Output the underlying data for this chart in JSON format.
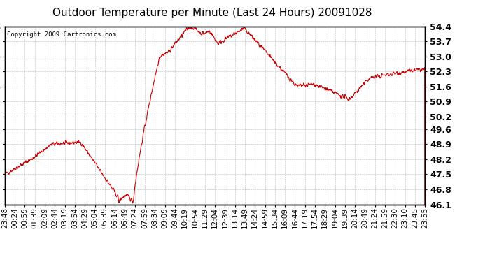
{
  "title": "Outdoor Temperature per Minute (Last 24 Hours) 20091028",
  "copyright": "Copyright 2009 Cartronics.com",
  "line_color": "#cc0000",
  "background_color": "#ffffff",
  "plot_background": "#ffffff",
  "grid_color": "#aaaaaa",
  "ylim": [
    46.1,
    54.4
  ],
  "yticks": [
    46.1,
    46.8,
    47.5,
    48.2,
    48.9,
    49.6,
    50.2,
    50.9,
    51.6,
    52.3,
    53.0,
    53.7,
    54.4
  ],
  "xtick_labels": [
    "23:48",
    "00:24",
    "00:59",
    "01:39",
    "02:09",
    "02:44",
    "03:19",
    "03:54",
    "04:29",
    "05:04",
    "05:39",
    "06:14",
    "06:49",
    "07:24",
    "07:59",
    "08:34",
    "09:09",
    "09:44",
    "10:19",
    "10:54",
    "11:29",
    "12:04",
    "12:39",
    "13:14",
    "13:49",
    "14:24",
    "14:59",
    "15:34",
    "16:09",
    "16:44",
    "17:19",
    "17:54",
    "18:29",
    "19:04",
    "19:39",
    "20:14",
    "20:49",
    "21:24",
    "21:59",
    "22:30",
    "23:10",
    "23:45",
    "23:55"
  ],
  "title_fontsize": 11,
  "tick_fontsize": 7.5,
  "ytick_fontsize": 9,
  "copyright_fontsize": 6.5
}
